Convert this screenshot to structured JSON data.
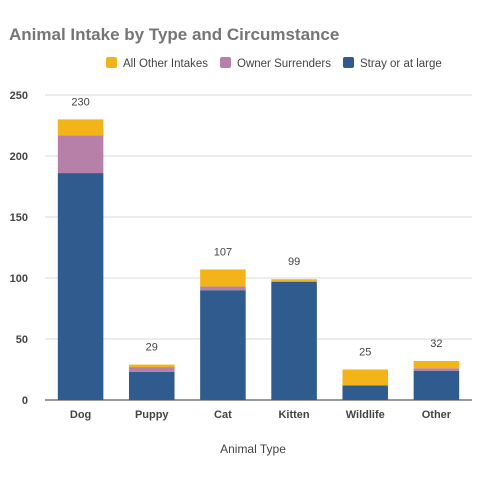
{
  "chart_data": {
    "type": "bar",
    "stacked": true,
    "title": "Animal Intake by Type and Circumstance",
    "xlabel": "Animal Type",
    "ylabel": "",
    "ylim": [
      0,
      250
    ],
    "yticks": [
      0,
      50,
      100,
      150,
      200,
      250
    ],
    "grid": true,
    "legend_position": "top-right",
    "categories": [
      "Dog",
      "Puppy",
      "Cat",
      "Kitten",
      "Wildlife",
      "Other"
    ],
    "series": [
      {
        "name": "Stray or at large",
        "color": "#2f5b8e",
        "values": [
          186,
          23,
          90,
          97,
          12,
          24
        ]
      },
      {
        "name": "Owner Surrenders",
        "color": "#b680a8",
        "values": [
          31,
          4,
          3,
          0,
          0,
          2
        ]
      },
      {
        "name": "All Other Intakes",
        "color": "#f2b418",
        "values": [
          13,
          2,
          14,
          2,
          13,
          6
        ]
      }
    ],
    "legend_order": [
      2,
      1,
      0
    ],
    "totals": [
      230,
      29,
      107,
      99,
      25,
      32
    ]
  }
}
